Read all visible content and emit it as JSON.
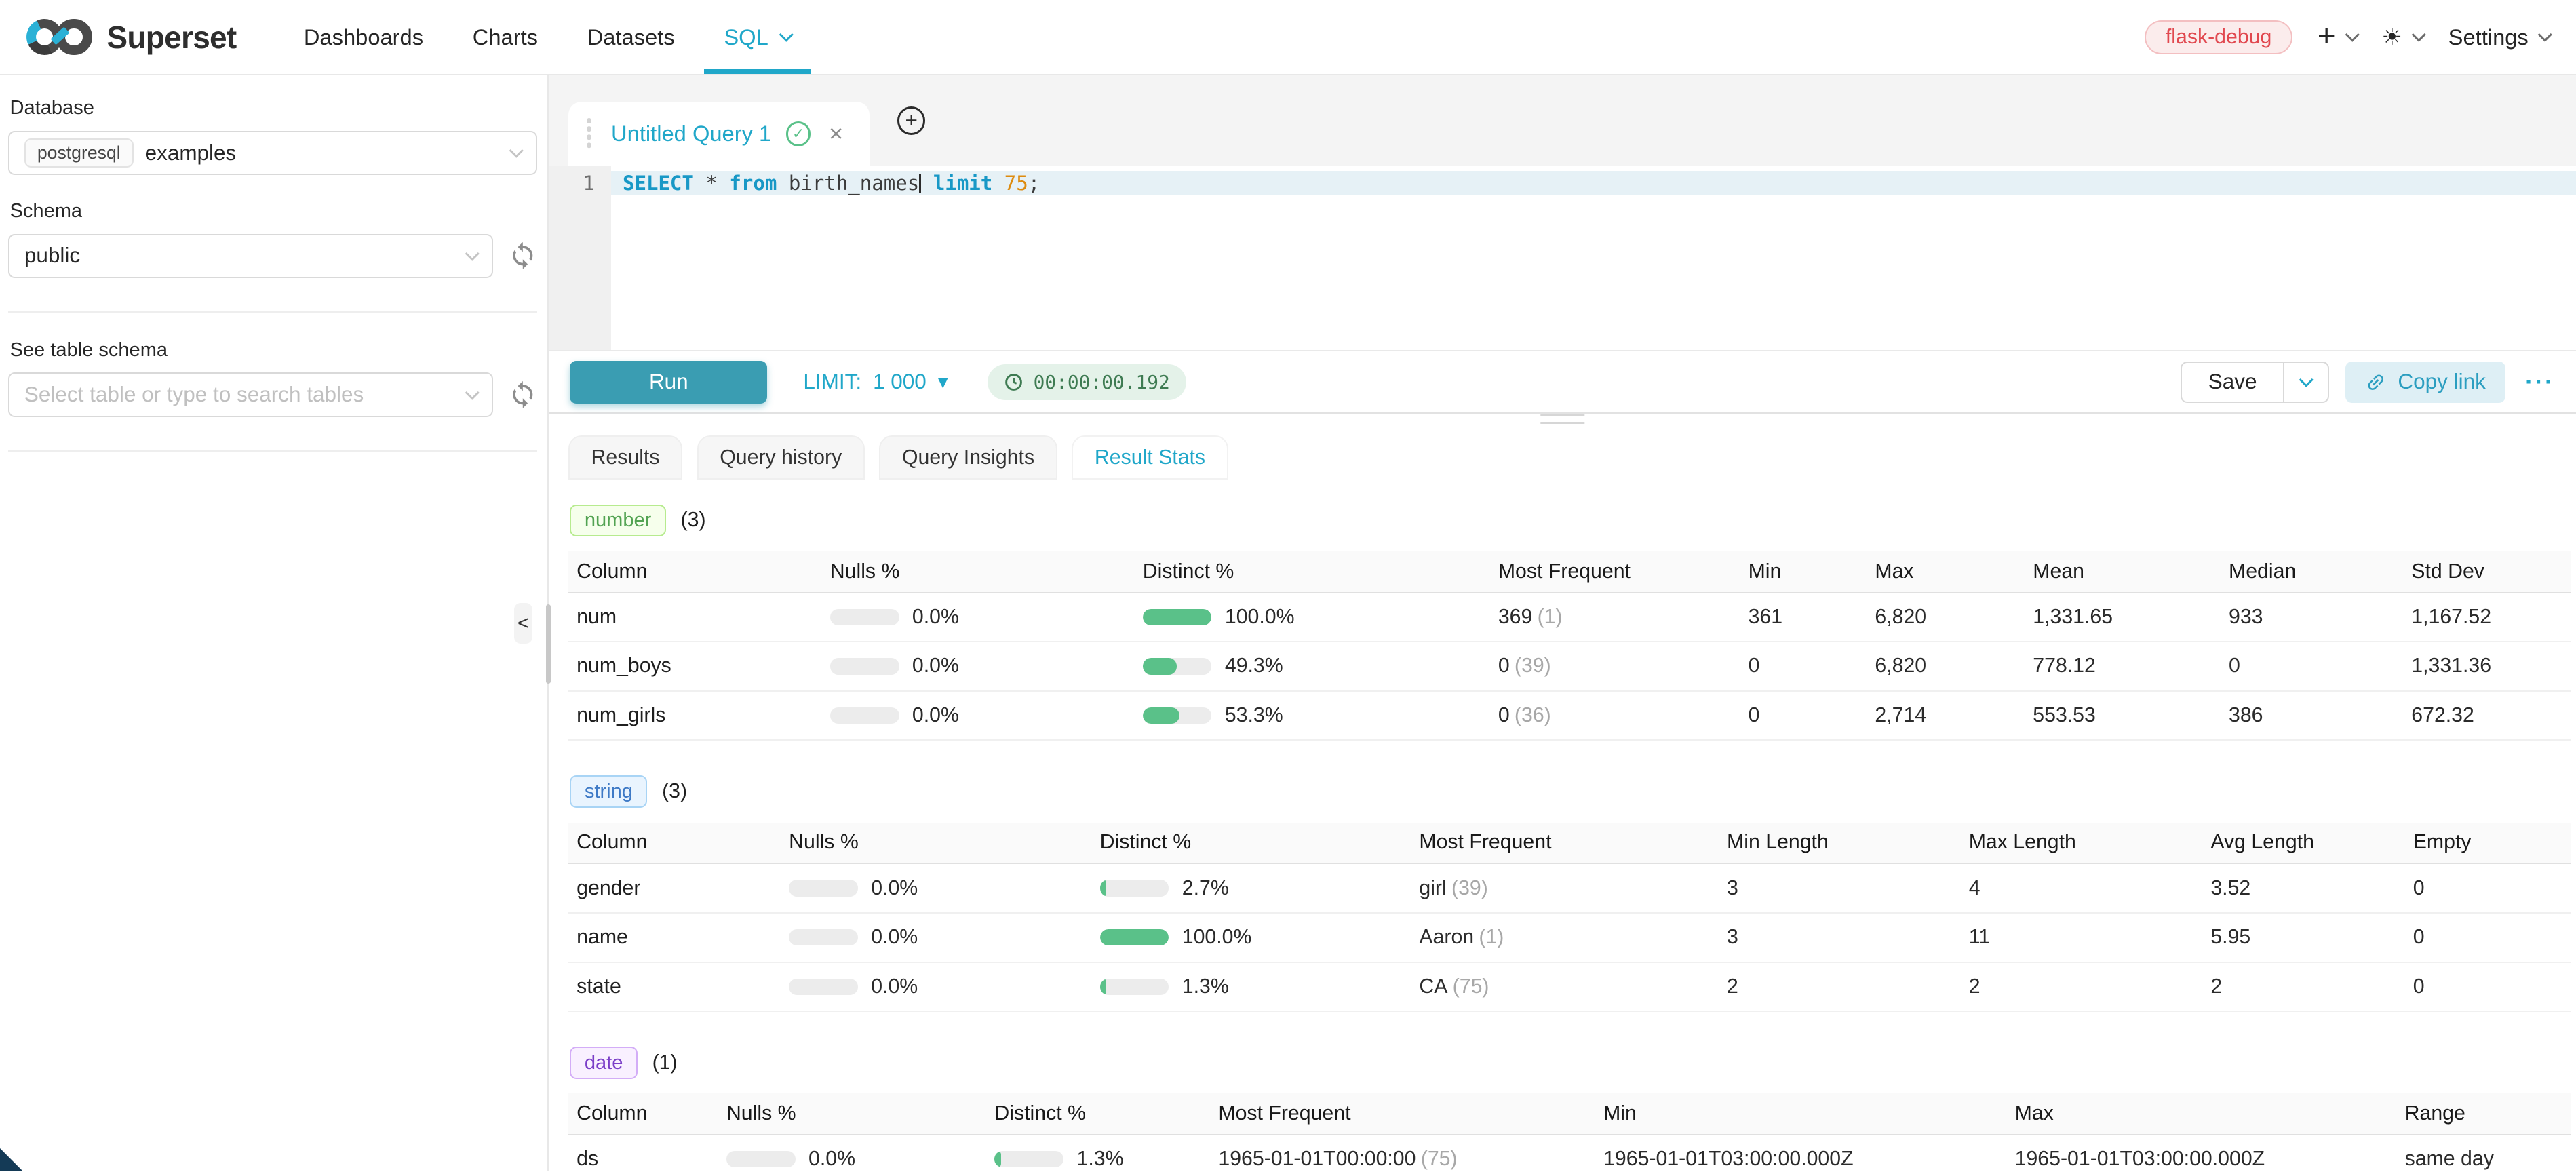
{
  "nav": {
    "brand": "Superset",
    "items": [
      {
        "label": "Dashboards",
        "active": false
      },
      {
        "label": "Charts",
        "active": false
      },
      {
        "label": "Datasets",
        "active": false
      },
      {
        "label": "SQL",
        "active": true,
        "has_caret": true
      }
    ],
    "environment_tag": "flask-debug",
    "settings_label": "Settings"
  },
  "icons": {
    "plus": "+",
    "sun": "☀",
    "new_tab_plus": "+",
    "close": "×",
    "check": "✓",
    "collapse": "<",
    "limit_caret": "▼",
    "more": "···"
  },
  "sidebar": {
    "database_label": "Database",
    "database_engine": "postgresql",
    "database_name": "examples",
    "schema_label": "Schema",
    "schema_value": "public",
    "table_label": "See table schema",
    "table_placeholder": "Select table or type to search tables"
  },
  "editor": {
    "tab_title": "Untitled Query 1",
    "line_number": "1",
    "sql": "SELECT * from birth_names limit 75;",
    "sql_tokens": [
      {
        "text": "SELECT",
        "type": "kw"
      },
      {
        "text": " * ",
        "type": "plain"
      },
      {
        "text": "from",
        "type": "kw"
      },
      {
        "text": " birth_names",
        "type": "plain"
      },
      {
        "text": "",
        "type": "cursor"
      },
      {
        "text": " ",
        "type": "plain"
      },
      {
        "text": "limit",
        "type": "kw"
      },
      {
        "text": " ",
        "type": "plain"
      },
      {
        "text": "75",
        "type": "num"
      },
      {
        "text": ";",
        "type": "plain"
      }
    ],
    "run_label": "Run",
    "limit_label": "LIMIT:",
    "limit_value": "1 000",
    "timer": "00:00:00.192",
    "save_label": "Save",
    "copy_link_label": "Copy link"
  },
  "south_tabs": [
    {
      "label": "Results",
      "active": false
    },
    {
      "label": "Query history",
      "active": false
    },
    {
      "label": "Query Insights",
      "active": false
    },
    {
      "label": "Result Stats",
      "active": true
    }
  ],
  "colors": {
    "accent": "#20A7C9",
    "run_button": "#3A9DB2",
    "bar_fill": "#5AC189",
    "timer_text": "#3E7B52",
    "timer_bg": "#E4F2E9",
    "env_tag_text": "#E1484F",
    "env_tag_bg": "#FBECEC"
  },
  "result_stats": {
    "sections": [
      {
        "tag": "number",
        "count": "(3)",
        "tag_color": "#52A352",
        "tag_bg": "#F6FFEC",
        "tag_border": "#B7EB8F",
        "headers": [
          "Column",
          "Nulls %",
          "Distinct %",
          "Most Frequent",
          "Min",
          "Max",
          "Mean",
          "Median",
          "Std Dev"
        ],
        "rows": [
          {
            "column": "num",
            "nulls": {
              "pct": "0.0%",
              "fill": 0
            },
            "distinct": {
              "pct": "100.0%",
              "fill": 100
            },
            "most_frequent": {
              "value": "369",
              "count": "(1)"
            },
            "stats": [
              "361",
              "6,820",
              "1,331.65",
              "933",
              "1,167.52"
            ]
          },
          {
            "column": "num_boys",
            "nulls": {
              "pct": "0.0%",
              "fill": 0
            },
            "distinct": {
              "pct": "49.3%",
              "fill": 49.3
            },
            "most_frequent": {
              "value": "0",
              "count": "(39)"
            },
            "stats": [
              "0",
              "6,820",
              "778.12",
              "0",
              "1,331.36"
            ]
          },
          {
            "column": "num_girls",
            "nulls": {
              "pct": "0.0%",
              "fill": 0
            },
            "distinct": {
              "pct": "53.3%",
              "fill": 53.3
            },
            "most_frequent": {
              "value": "0",
              "count": "(36)"
            },
            "stats": [
              "0",
              "2,714",
              "553.53",
              "386",
              "672.32"
            ]
          }
        ]
      },
      {
        "tag": "string",
        "count": "(3)",
        "tag_color": "#3E7AC6",
        "tag_bg": "#E9F4FE",
        "tag_border": "#A8D4F5",
        "headers": [
          "Column",
          "Nulls %",
          "Distinct %",
          "Most Frequent",
          "Min Length",
          "Max Length",
          "Avg Length",
          "Empty"
        ],
        "rows": [
          {
            "column": "gender",
            "nulls": {
              "pct": "0.0%",
              "fill": 0
            },
            "distinct": {
              "pct": "2.7%",
              "fill": 2.7
            },
            "most_frequent": {
              "value": "girl",
              "count": "(39)"
            },
            "stats": [
              "3",
              "4",
              "3.52",
              "0"
            ]
          },
          {
            "column": "name",
            "nulls": {
              "pct": "0.0%",
              "fill": 0
            },
            "distinct": {
              "pct": "100.0%",
              "fill": 100
            },
            "most_frequent": {
              "value": "Aaron",
              "count": "(1)"
            },
            "stats": [
              "3",
              "11",
              "5.95",
              "0"
            ]
          },
          {
            "column": "state",
            "nulls": {
              "pct": "0.0%",
              "fill": 0
            },
            "distinct": {
              "pct": "1.3%",
              "fill": 1.3
            },
            "most_frequent": {
              "value": "CA",
              "count": "(75)"
            },
            "stats": [
              "2",
              "2",
              "2",
              "0"
            ]
          }
        ]
      },
      {
        "tag": "date",
        "count": "(1)",
        "tag_color": "#7B3EC8",
        "tag_bg": "#F9F0FF",
        "tag_border": "#D3ADF7",
        "headers": [
          "Column",
          "Nulls %",
          "Distinct %",
          "Most Frequent",
          "Min",
          "Max",
          "Range"
        ],
        "rows": [
          {
            "column": "ds",
            "nulls": {
              "pct": "0.0%",
              "fill": 0
            },
            "distinct": {
              "pct": "1.3%",
              "fill": 1.3
            },
            "most_frequent": {
              "value": "1965-01-01T00:00:00",
              "count": "(75)"
            },
            "stats": [
              "1965-01-01T03:00:00.000Z",
              "1965-01-01T03:00:00.000Z",
              "same day"
            ]
          }
        ]
      }
    ]
  }
}
